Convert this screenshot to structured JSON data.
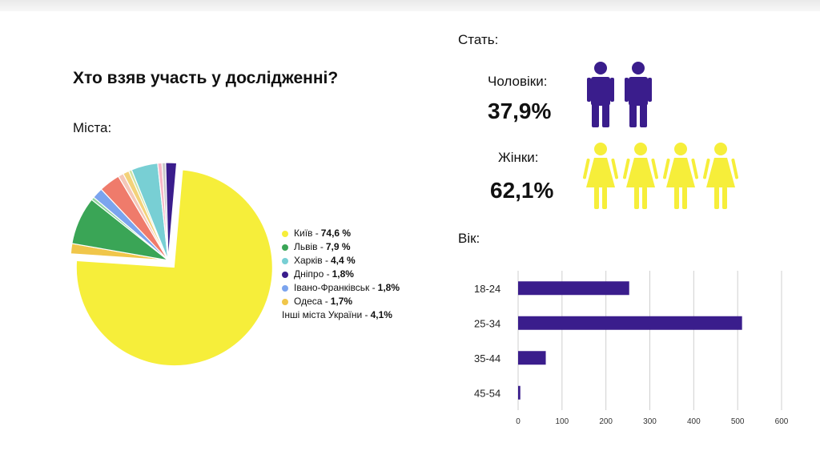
{
  "title": "Хто взяв участь у дослідженні?",
  "cities_label": "Міста:",
  "gender_label": "Стать:",
  "age_label": "Вік:",
  "gender": {
    "men_label": "Чоловіки:",
    "men_pct": "37,9%",
    "women_label": "Жінки:",
    "women_pct": "62,1%"
  },
  "legend": [
    {
      "label": "Київ  - ",
      "value": "74,6 %",
      "color": "#f6ee3a"
    },
    {
      "label": "Львів - ",
      "value": "7,9 %",
      "color": "#3aa556"
    },
    {
      "label": "Харків - ",
      "value": "4,4 %",
      "color": "#78cfd4"
    },
    {
      "label": "Дніпро - ",
      "value": "1,8%",
      "color": "#3a1d8c"
    },
    {
      "label": "Івано-Франківськ - ",
      "value": "1,8%",
      "color": "#7ba4ee"
    },
    {
      "label": "Одеса - ",
      "value": "1,7%",
      "color": "#f0c64a"
    },
    {
      "label": "Інші міста України - ",
      "value": "4,1%",
      "color": ""
    }
  ],
  "chart_data": [
    {
      "type": "pie",
      "title": "Міста:",
      "slices": [
        {
          "name": "Київ",
          "value": 74.6,
          "color": "#f6ee3a",
          "exploded": true
        },
        {
          "name": "Одеса",
          "value": 1.7,
          "color": "#f0c64a"
        },
        {
          "name": "Львів",
          "value": 7.9,
          "color": "#3aa556"
        },
        {
          "name": "",
          "value": 0.5,
          "color": "#8fd4a0"
        },
        {
          "name": "Івано-Франківськ",
          "value": 1.8,
          "color": "#7ba4ee"
        },
        {
          "name": "",
          "value": 3.5,
          "color": "#ef7b6b"
        },
        {
          "name": "",
          "value": 0.9,
          "color": "#f4c7b8"
        },
        {
          "name": "",
          "value": 1.0,
          "color": "#f3d27a"
        },
        {
          "name": "",
          "value": 0.5,
          "color": "#cfe3a3"
        },
        {
          "name": "Харків",
          "value": 4.4,
          "color": "#78cfd4"
        },
        {
          "name": "",
          "value": 0.7,
          "color": "#f6b6c6"
        },
        {
          "name": "",
          "value": 0.6,
          "color": "#c9c9c9"
        },
        {
          "name": "Дніпро",
          "value": 1.8,
          "color": "#3a1d8c"
        }
      ]
    },
    {
      "type": "bar",
      "orientation": "horizontal",
      "title": "Вік:",
      "categories": [
        "18-24",
        "25-34",
        "35-44",
        "45-54"
      ],
      "values": [
        253,
        510,
        63,
        5
      ],
      "xlim": [
        0,
        600
      ],
      "xticks": [
        0,
        100,
        200,
        300,
        400,
        500,
        600
      ],
      "bar_color": "#3a1d8c",
      "grid": true
    }
  ],
  "colors": {
    "men": "#3a1d8c",
    "women": "#f6ee3a"
  },
  "icons": {
    "men": "man-icon",
    "women": "woman-icon"
  }
}
